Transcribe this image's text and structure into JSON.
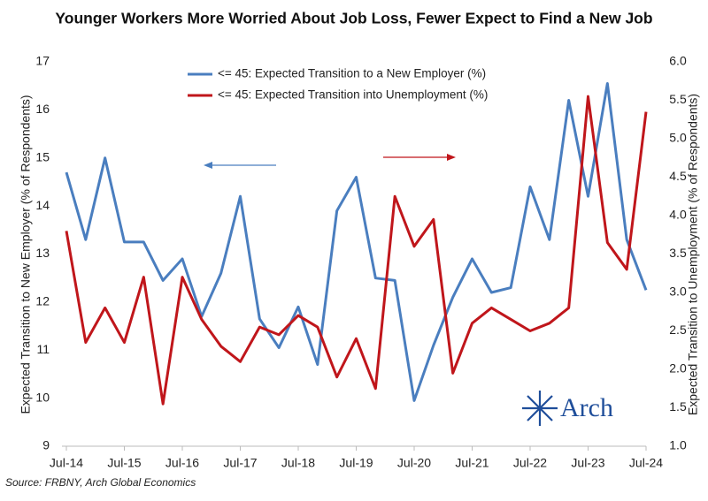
{
  "chart_data": {
    "type": "line",
    "title": "Younger Workers More Worried About Job Loss, Fewer Expect to Find a New Job",
    "y_label": "Expected Transition to New Employer  (% of Respondents)",
    "y2_label": "Expected Transition to Unemployment  (% of Respondents)",
    "source": "Source: FRBNY, Arch Global Economics",
    "logo_text": "Arch",
    "categories": [
      "Jul-14",
      null,
      null,
      "Jul-15",
      null,
      null,
      "Jul-16",
      null,
      null,
      "Jul-17",
      null,
      null,
      "Jul-18",
      null,
      null,
      "Jul-19",
      null,
      null,
      "Jul-20",
      null,
      null,
      "Jul-21",
      null,
      null,
      "Jul-22",
      null,
      null,
      "Jul-23",
      null,
      null,
      "Jul-24"
    ],
    "series": [
      {
        "name": "<= 45: Expected Transition to a New Employer (%)",
        "color": "#4a7ebf",
        "axis": "y",
        "values": [
          14.7,
          13.3,
          15.0,
          13.25,
          13.25,
          12.45,
          12.9,
          11.7,
          12.6,
          14.2,
          11.65,
          11.05,
          11.9,
          10.7,
          13.9,
          14.6,
          12.5,
          12.45,
          9.95,
          11.1,
          12.1,
          12.9,
          12.2,
          12.3,
          14.4,
          13.3,
          16.2,
          14.2,
          16.55,
          13.3,
          12.25
        ]
      },
      {
        "name": "<= 45: Expected Transition into Unemployment (%)",
        "color": "#c0161b",
        "axis": "y2",
        "values": [
          3.8,
          2.35,
          2.8,
          2.35,
          3.2,
          1.55,
          3.2,
          2.65,
          2.3,
          2.1,
          2.55,
          2.45,
          2.7,
          2.55,
          1.9,
          2.4,
          1.75,
          4.25,
          3.6,
          3.95,
          1.95,
          2.6,
          2.8,
          2.65,
          2.5,
          2.6,
          2.8,
          5.55,
          3.65,
          3.3,
          5.35
        ]
      }
    ],
    "ylim": [
      9,
      17
    ],
    "yticks": [
      9,
      10,
      11,
      12,
      13,
      14,
      15,
      16,
      17
    ],
    "y2lim": [
      1,
      6
    ],
    "y2ticks": [
      {
        "value": 1,
        "label": "1.0"
      },
      {
        "value": 1.5,
        "label": "1.5"
      },
      {
        "value": 2,
        "label": "2.0"
      },
      {
        "value": 2.5,
        "label": "2.5"
      },
      {
        "value": 3,
        "label": "3.0"
      },
      {
        "value": 3.5,
        "label": "3.5"
      },
      {
        "value": 4,
        "label": "4.0"
      },
      {
        "value": 4.5,
        "label": "4.5"
      },
      {
        "value": 5,
        "label": "5.0"
      },
      {
        "value": 5.5,
        "label": "5.5"
      },
      {
        "value": 6,
        "label": "6.0"
      }
    ],
    "grid": false,
    "legend": "top"
  }
}
